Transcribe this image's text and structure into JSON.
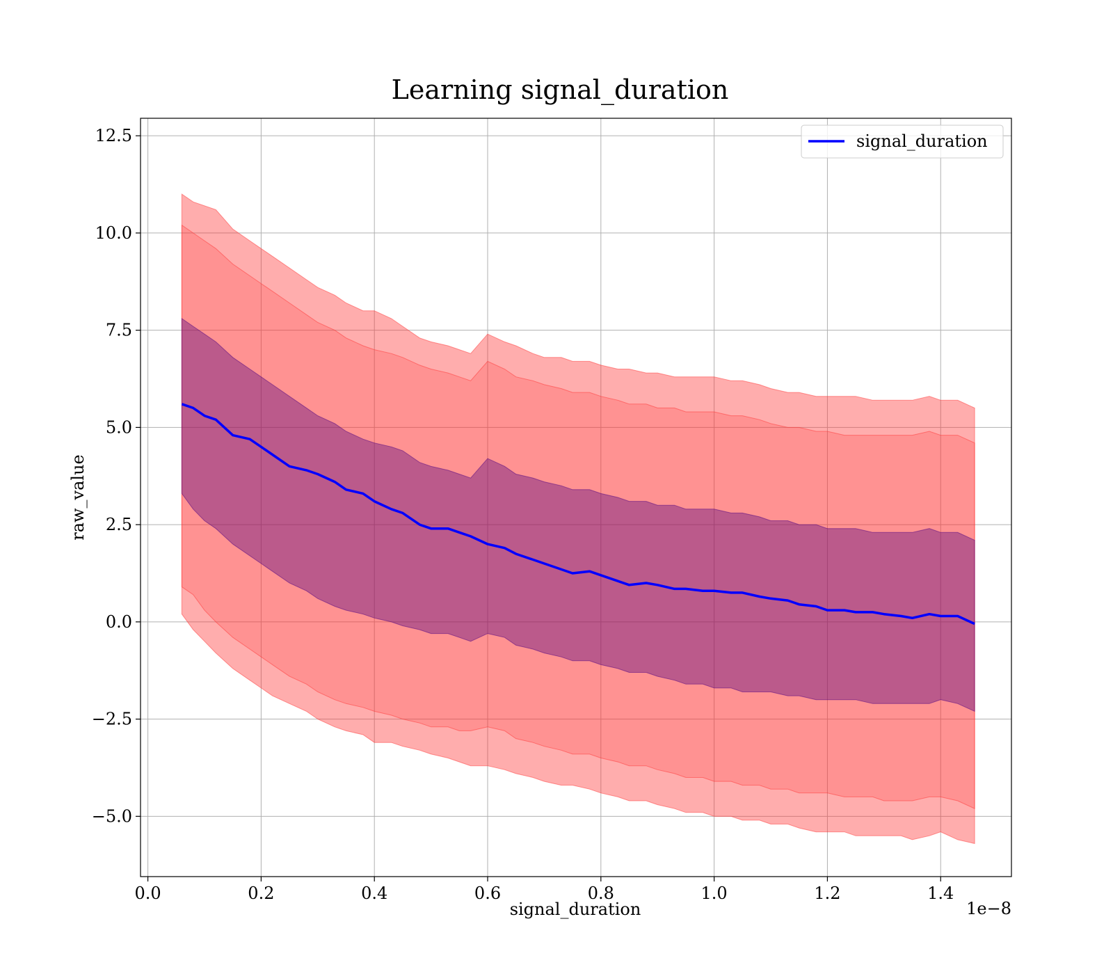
{
  "chart_data": {
    "type": "line",
    "title": "Learning signal_duration",
    "xlabel": "signal_duration",
    "ylabel": "raw_value",
    "x_offset_text": "1e−8",
    "xlim": [
      -0.013,
      1.525
    ],
    "ylim": [
      -6.55,
      12.95
    ],
    "x_ticks": [
      0.0,
      0.2,
      0.4,
      0.6,
      0.8,
      1.0,
      1.2,
      1.4
    ],
    "x_tick_labels": [
      "0.0",
      "0.2",
      "0.4",
      "0.6",
      "0.8",
      "1.0",
      "1.2",
      "1.4"
    ],
    "y_ticks": [
      -5.0,
      -2.5,
      0.0,
      2.5,
      5.0,
      7.5,
      10.0,
      12.5
    ],
    "y_tick_labels": [
      "−5.0",
      "−2.5",
      "0.0",
      "2.5",
      "5.0",
      "7.5",
      "10.0",
      "12.5"
    ],
    "grid": true,
    "legend": {
      "position": "top-right",
      "entries": [
        "signal_duration"
      ]
    },
    "colors": {
      "line": "#0000ff",
      "band": "#ff3333",
      "band_inner": "#4b0082"
    },
    "x": [
      0.06,
      0.08,
      0.1,
      0.12,
      0.15,
      0.18,
      0.2,
      0.22,
      0.25,
      0.28,
      0.3,
      0.33,
      0.35,
      0.38,
      0.4,
      0.43,
      0.45,
      0.48,
      0.5,
      0.53,
      0.55,
      0.57,
      0.6,
      0.63,
      0.65,
      0.68,
      0.7,
      0.73,
      0.75,
      0.78,
      0.8,
      0.83,
      0.85,
      0.88,
      0.9,
      0.93,
      0.95,
      0.98,
      1.0,
      1.03,
      1.05,
      1.08,
      1.1,
      1.13,
      1.15,
      1.18,
      1.2,
      1.23,
      1.25,
      1.28,
      1.3,
      1.33,
      1.35,
      1.38,
      1.4,
      1.43,
      1.46
    ],
    "series": [
      {
        "name": "signal_duration",
        "y": [
          5.6,
          5.5,
          5.3,
          5.2,
          4.8,
          4.7,
          4.5,
          4.3,
          4.0,
          3.9,
          3.8,
          3.6,
          3.4,
          3.3,
          3.1,
          2.9,
          2.8,
          2.5,
          2.4,
          2.4,
          2.3,
          2.2,
          2.0,
          1.9,
          1.75,
          1.6,
          1.5,
          1.35,
          1.25,
          1.3,
          1.2,
          1.05,
          0.95,
          1.0,
          0.95,
          0.85,
          0.85,
          0.8,
          0.8,
          0.75,
          0.75,
          0.65,
          0.6,
          0.55,
          0.45,
          0.4,
          0.3,
          0.3,
          0.25,
          0.25,
          0.2,
          0.15,
          0.1,
          0.2,
          0.15,
          0.15,
          -0.05
        ]
      }
    ],
    "bands": [
      {
        "lower": [
          0.2,
          -0.2,
          -0.5,
          -0.8,
          -1.2,
          -1.5,
          -1.7,
          -1.9,
          -2.1,
          -2.3,
          -2.5,
          -2.7,
          -2.8,
          -2.9,
          -3.1,
          -3.1,
          -3.2,
          -3.3,
          -3.4,
          -3.5,
          -3.6,
          -3.7,
          -3.7,
          -3.8,
          -3.9,
          -4.0,
          -4.1,
          -4.2,
          -4.2,
          -4.3,
          -4.4,
          -4.5,
          -4.6,
          -4.6,
          -4.7,
          -4.8,
          -4.9,
          -4.9,
          -5.0,
          -5.0,
          -5.1,
          -5.1,
          -5.2,
          -5.2,
          -5.3,
          -5.4,
          -5.4,
          -5.4,
          -5.5,
          -5.5,
          -5.5,
          -5.5,
          -5.6,
          -5.5,
          -5.4,
          -5.6,
          -5.7
        ],
        "upper": [
          11.0,
          10.8,
          10.7,
          10.6,
          10.1,
          9.8,
          9.6,
          9.4,
          9.1,
          8.8,
          8.6,
          8.4,
          8.2,
          8.0,
          8.0,
          7.8,
          7.6,
          7.3,
          7.2,
          7.1,
          7.0,
          6.9,
          7.4,
          7.2,
          7.1,
          6.9,
          6.8,
          6.8,
          6.7,
          6.7,
          6.6,
          6.5,
          6.5,
          6.4,
          6.4,
          6.3,
          6.3,
          6.3,
          6.3,
          6.2,
          6.2,
          6.1,
          6.0,
          5.9,
          5.9,
          5.8,
          5.8,
          5.8,
          5.8,
          5.7,
          5.7,
          5.7,
          5.7,
          5.8,
          5.7,
          5.7,
          5.5
        ]
      },
      {
        "lower": [
          0.9,
          0.7,
          0.3,
          0.0,
          -0.4,
          -0.7,
          -0.9,
          -1.1,
          -1.4,
          -1.6,
          -1.8,
          -2.0,
          -2.1,
          -2.2,
          -2.3,
          -2.4,
          -2.5,
          -2.6,
          -2.7,
          -2.7,
          -2.8,
          -2.8,
          -2.7,
          -2.8,
          -3.0,
          -3.1,
          -3.2,
          -3.3,
          -3.4,
          -3.4,
          -3.5,
          -3.6,
          -3.7,
          -3.7,
          -3.8,
          -3.9,
          -4.0,
          -4.0,
          -4.1,
          -4.1,
          -4.2,
          -4.2,
          -4.3,
          -4.3,
          -4.4,
          -4.4,
          -4.4,
          -4.5,
          -4.5,
          -4.5,
          -4.6,
          -4.6,
          -4.6,
          -4.5,
          -4.5,
          -4.6,
          -4.8
        ],
        "upper": [
          10.2,
          10.0,
          9.8,
          9.6,
          9.2,
          8.9,
          8.7,
          8.5,
          8.2,
          7.9,
          7.7,
          7.5,
          7.3,
          7.1,
          7.0,
          6.9,
          6.8,
          6.6,
          6.5,
          6.4,
          6.3,
          6.2,
          6.7,
          6.5,
          6.3,
          6.2,
          6.1,
          6.0,
          5.9,
          5.9,
          5.8,
          5.7,
          5.6,
          5.6,
          5.5,
          5.5,
          5.4,
          5.4,
          5.4,
          5.3,
          5.3,
          5.2,
          5.1,
          5.0,
          5.0,
          4.9,
          4.9,
          4.8,
          4.8,
          4.8,
          4.8,
          4.8,
          4.8,
          4.9,
          4.8,
          4.8,
          4.6
        ]
      },
      {
        "lower": [
          3.3,
          2.9,
          2.6,
          2.4,
          2.0,
          1.7,
          1.5,
          1.3,
          1.0,
          0.8,
          0.6,
          0.4,
          0.3,
          0.2,
          0.1,
          0.0,
          -0.1,
          -0.2,
          -0.3,
          -0.3,
          -0.4,
          -0.5,
          -0.3,
          -0.4,
          -0.6,
          -0.7,
          -0.8,
          -0.9,
          -1.0,
          -1.0,
          -1.1,
          -1.2,
          -1.3,
          -1.3,
          -1.4,
          -1.5,
          -1.6,
          -1.6,
          -1.7,
          -1.7,
          -1.8,
          -1.8,
          -1.8,
          -1.9,
          -1.9,
          -2.0,
          -2.0,
          -2.0,
          -2.0,
          -2.1,
          -2.1,
          -2.1,
          -2.1,
          -2.1,
          -2.0,
          -2.1,
          -2.3
        ],
        "upper": [
          7.8,
          7.6,
          7.4,
          7.2,
          6.8,
          6.5,
          6.3,
          6.1,
          5.8,
          5.5,
          5.3,
          5.1,
          4.9,
          4.7,
          4.6,
          4.5,
          4.4,
          4.1,
          4.0,
          3.9,
          3.8,
          3.7,
          4.2,
          4.0,
          3.8,
          3.7,
          3.6,
          3.5,
          3.4,
          3.4,
          3.3,
          3.2,
          3.1,
          3.1,
          3.0,
          3.0,
          2.9,
          2.9,
          2.9,
          2.8,
          2.8,
          2.7,
          2.6,
          2.6,
          2.5,
          2.5,
          2.4,
          2.4,
          2.4,
          2.3,
          2.3,
          2.3,
          2.3,
          2.4,
          2.3,
          2.3,
          2.1
        ]
      }
    ]
  }
}
